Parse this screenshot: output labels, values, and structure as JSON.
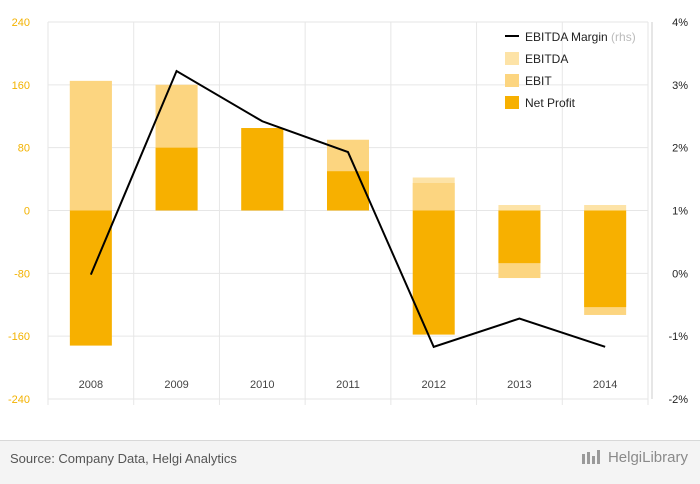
{
  "chart_data": {
    "type": "bar",
    "categories": [
      "2008",
      "2009",
      "2010",
      "2011",
      "2012",
      "2013",
      "2014"
    ],
    "series": [
      {
        "name": "EBITDA",
        "kind": "bar",
        "color": "#fde3a7",
        "values": [
          165,
          160,
          105,
          90,
          42,
          7,
          7
        ]
      },
      {
        "name": "EBIT",
        "kind": "bar",
        "color": "#fcd580",
        "values": [
          165,
          160,
          105,
          90,
          35,
          -86,
          -133
        ]
      },
      {
        "name": "Net Profit",
        "kind": "bar",
        "color": "#f7b000",
        "values": [
          -172,
          80,
          105,
          50,
          -158,
          -67,
          -123
        ]
      },
      {
        "name": "EBITDA Margin",
        "name_suffix": "(rhs)",
        "kind": "line",
        "axis": "right",
        "color": "#000000",
        "values": [
          -0.02,
          3.22,
          2.42,
          1.93,
          -1.17,
          -0.72,
          -1.17
        ]
      }
    ],
    "y_left": {
      "min": -240,
      "max": 240,
      "ticks": [
        "240",
        "160",
        "80",
        "0",
        "-80",
        "-160",
        "-240"
      ]
    },
    "y_right": {
      "min": -2,
      "max": 4,
      "ticks": [
        "4%",
        "3%",
        "2%",
        "1%",
        "0%",
        "-1%",
        "-2%"
      ]
    },
    "grid": true,
    "legend_position": "top-right",
    "colors": {
      "left_axis": "#f3b200",
      "right_axis": "#222222",
      "grid": "#e6e6e6"
    }
  },
  "footer": {
    "source": "Source: Company Data, Helgi Analytics",
    "brand": "HelgiLibrary"
  }
}
